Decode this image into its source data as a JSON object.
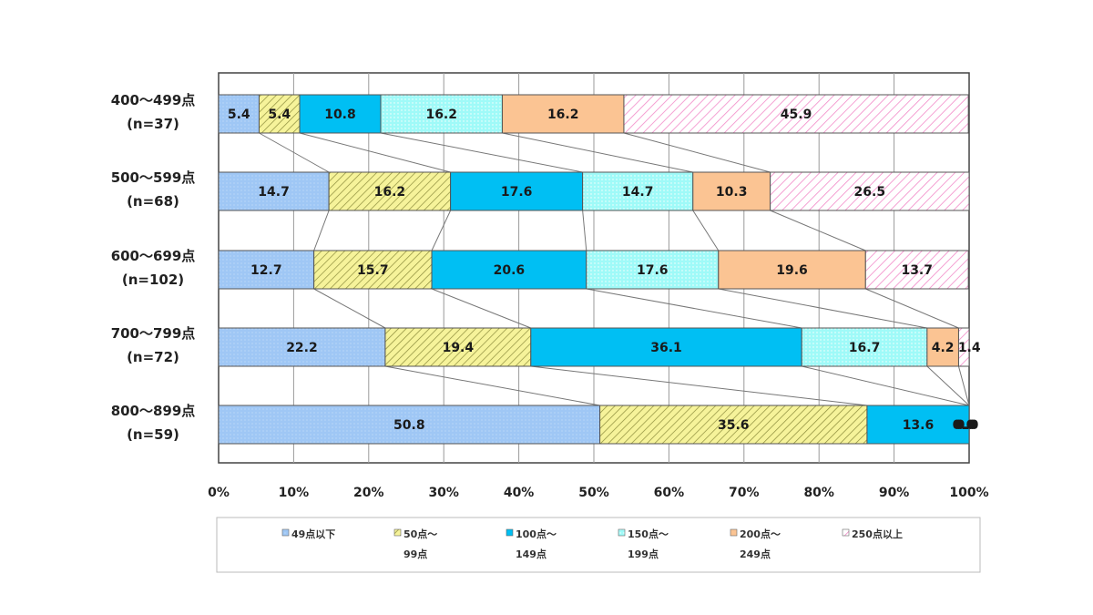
{
  "chart_data": {
    "type": "bar",
    "orientation": "horizontal",
    "stacked": true,
    "percent": true,
    "categories": [
      [
        "400～499点",
        "(n=37)"
      ],
      [
        "500～599点",
        "(n=68)"
      ],
      [
        "600～699点",
        "(n=102)"
      ],
      [
        "700～799点",
        "(n=72)"
      ],
      [
        "800～899点",
        "(n=59)"
      ]
    ],
    "series": [
      {
        "name": [
          "49点以下"
        ],
        "color": "#9fc7f5",
        "pattern": "dots",
        "values": [
          5.4,
          14.7,
          12.7,
          22.2,
          50.8
        ]
      },
      {
        "name": [
          "50点～",
          "99点"
        ],
        "color": "#f4f28c",
        "pattern": "hatch",
        "values": [
          5.4,
          16.2,
          15.7,
          19.4,
          35.6
        ]
      },
      {
        "name": [
          "100点～",
          "149点"
        ],
        "color": "#00bff3",
        "pattern": "solid",
        "values": [
          10.8,
          17.6,
          20.6,
          36.1,
          13.6
        ]
      },
      {
        "name": [
          "150点～",
          "199点"
        ],
        "color": "#9ffaf8",
        "pattern": "dots",
        "values": [
          16.2,
          14.7,
          17.6,
          16.7,
          0.0
        ]
      },
      {
        "name": [
          "200点～",
          "249点"
        ],
        "color": "#fbc493",
        "pattern": "solid",
        "values": [
          16.2,
          10.3,
          19.6,
          4.2,
          0.0
        ]
      },
      {
        "name": [
          "250点以上"
        ],
        "color": "#fbd6ec",
        "pattern": "pinkhatch",
        "values": [
          45.9,
          26.5,
          13.7,
          1.4,
          0.0
        ]
      }
    ],
    "x_ticks": [
      "0%",
      "10%",
      "20%",
      "30%",
      "40%",
      "50%",
      "60%",
      "70%",
      "80%",
      "90%",
      "100%"
    ],
    "xlim": [
      0,
      100
    ],
    "grid": true,
    "connector_lines": true,
    "legend_position": "bottom"
  }
}
